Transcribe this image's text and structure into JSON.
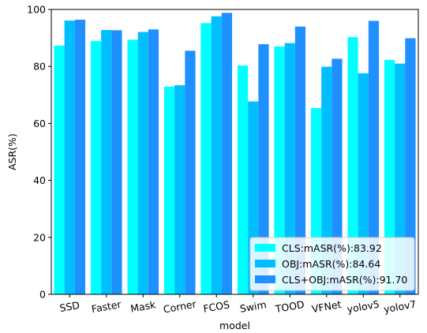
{
  "chart_data": {
    "type": "bar",
    "xlabel": "model",
    "ylabel": "ASR(%)",
    "ylim": [
      0,
      100
    ],
    "yticks": [
      0,
      20,
      40,
      60,
      80,
      100
    ],
    "grid": false,
    "legend_position": "bottom-right",
    "categories": [
      "SSD",
      "Faster",
      "Mask",
      "Corner",
      "FCOS",
      "Swim",
      "TOOD",
      "VFNet",
      "yolov5",
      "yolov7"
    ],
    "series": [
      {
        "name": "CLS:mASR(%):83.92",
        "color": "#00ffff",
        "values": [
          87.3,
          88.9,
          89.4,
          72.9,
          95.2,
          80.3,
          87.0,
          65.4,
          90.3,
          82.3
        ]
      },
      {
        "name": "OBJ:mASR(%):84.64",
        "color": "#00bfff",
        "values": [
          96.1,
          92.8,
          92.1,
          73.4,
          97.6,
          67.7,
          88.2,
          79.9,
          77.6,
          81.0
        ]
      },
      {
        "name": "CLS+OBJ:mASR(%):91.70",
        "color": "#1e90ff",
        "values": [
          96.4,
          92.7,
          93.0,
          85.5,
          98.8,
          87.8,
          94.0,
          82.7,
          96.0,
          89.9
        ]
      }
    ]
  }
}
